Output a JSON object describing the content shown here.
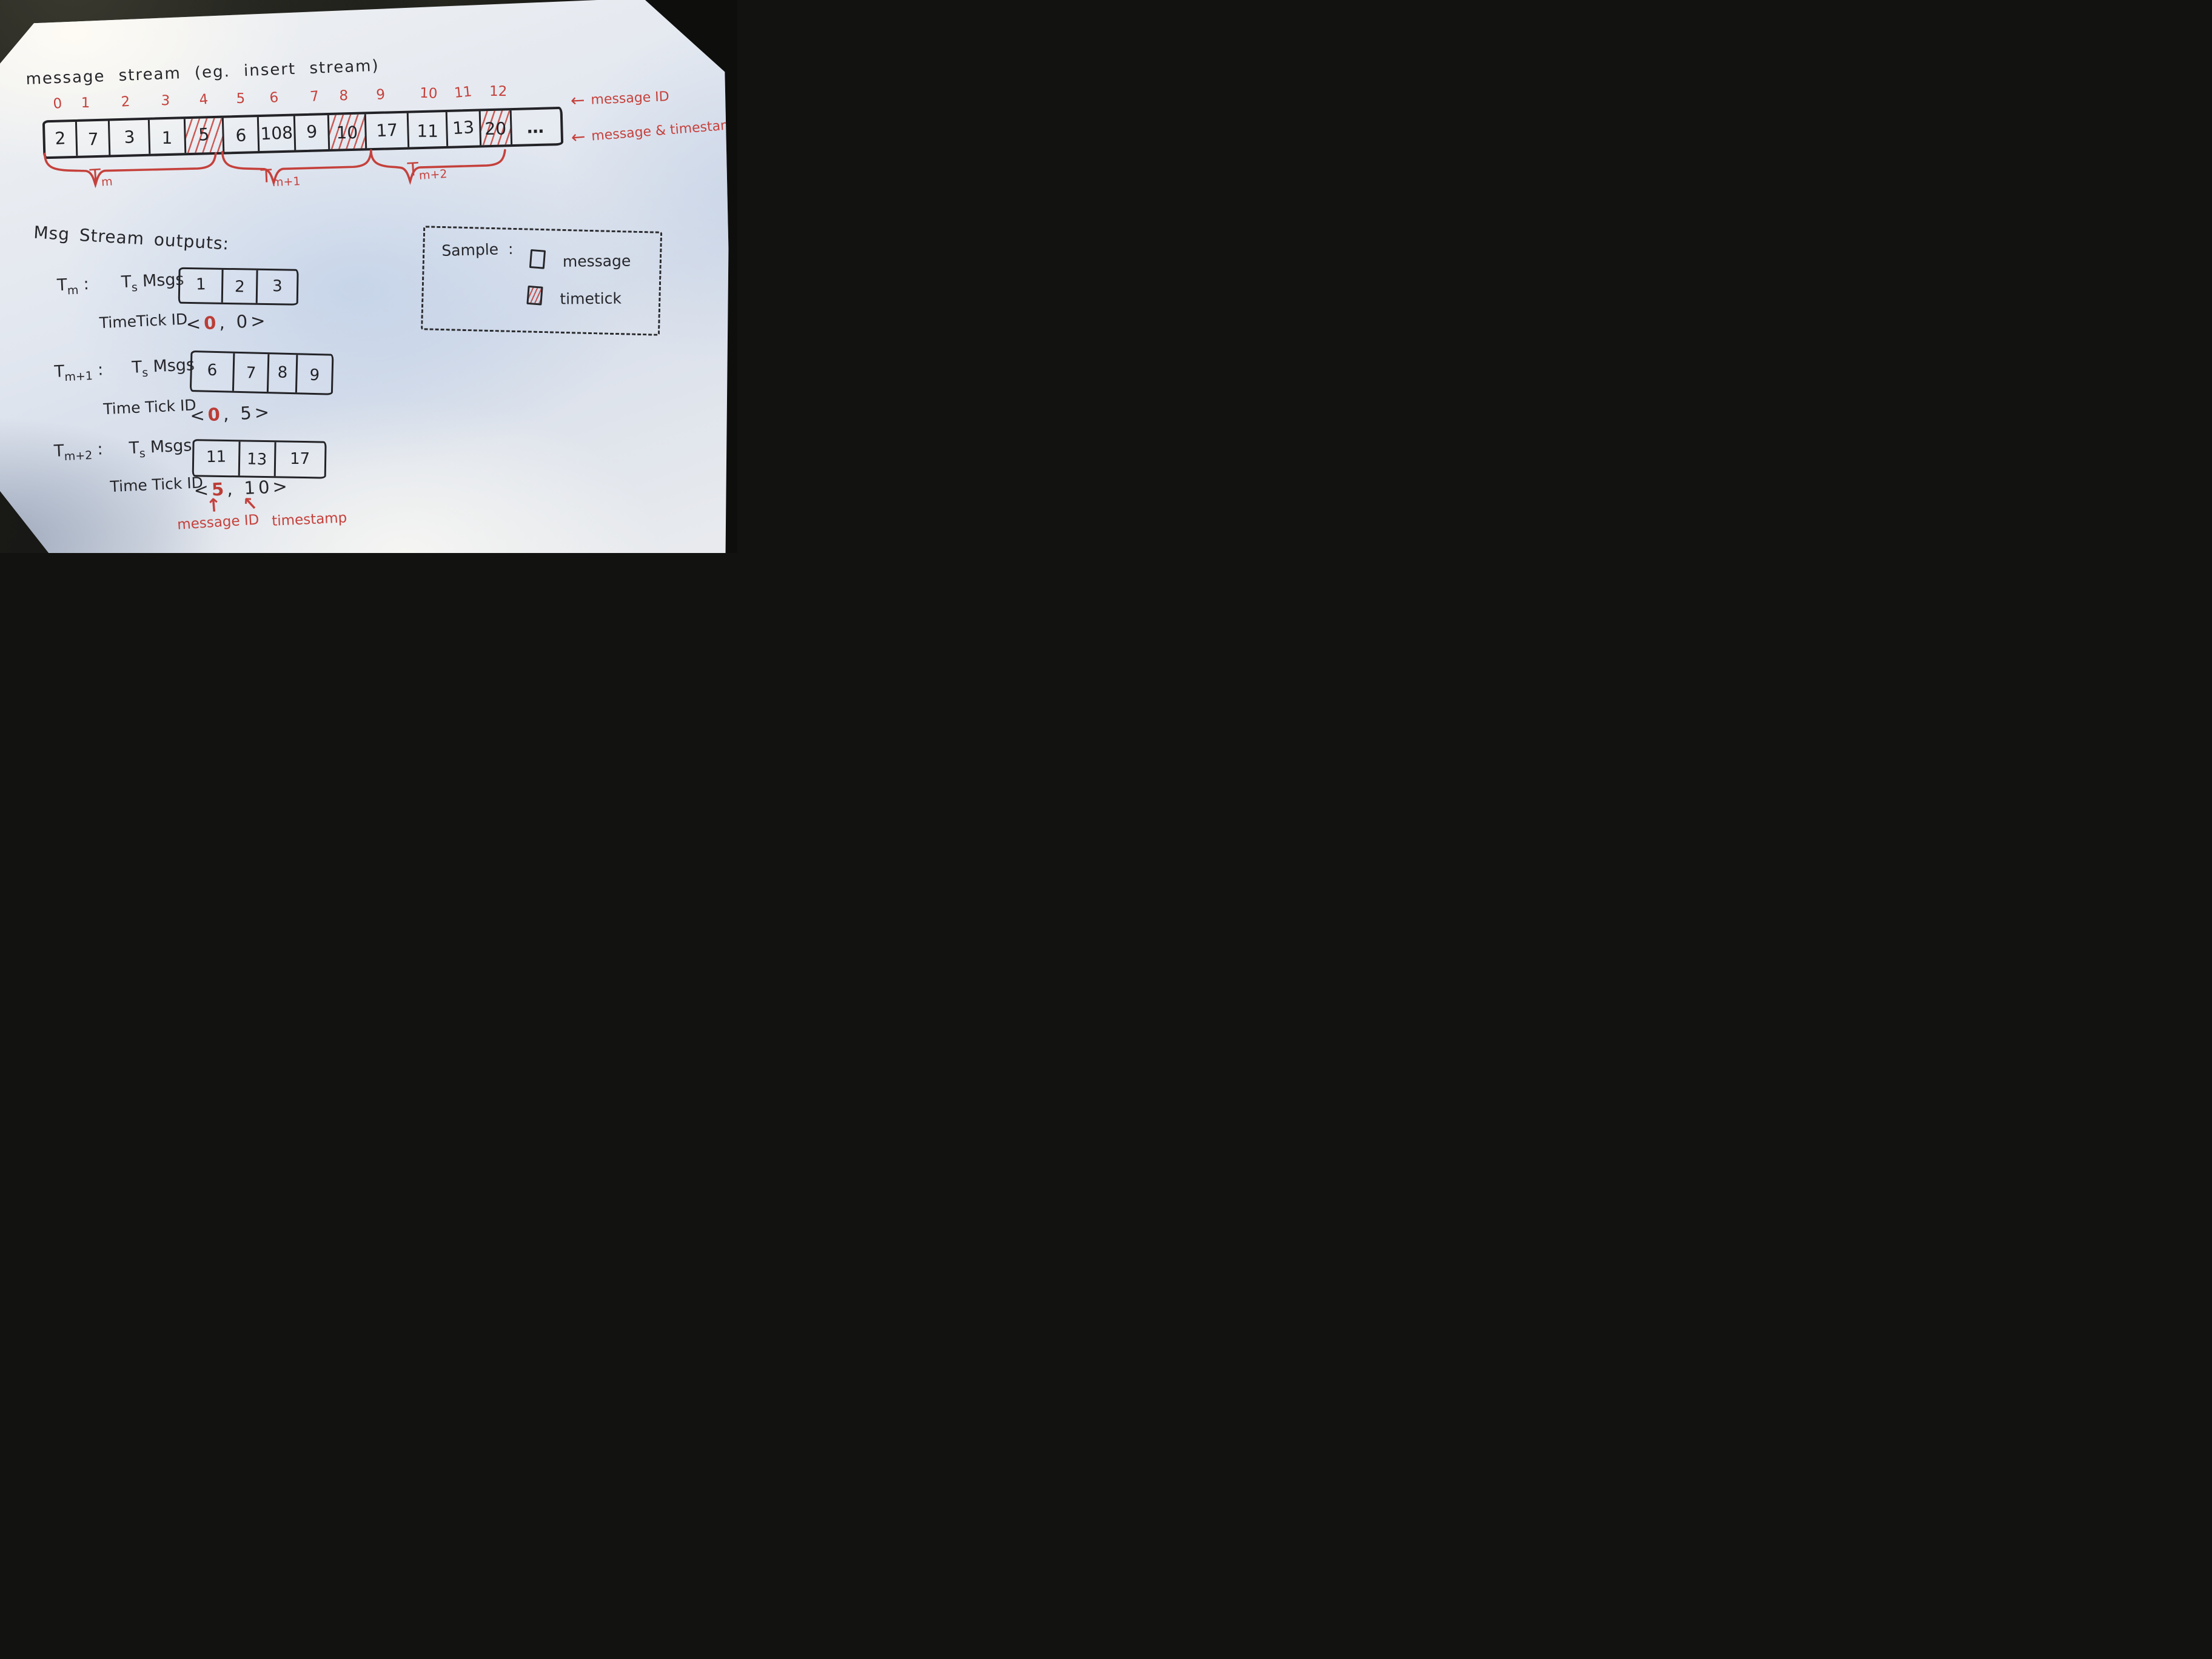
{
  "title": "message stream (eg. insert stream)",
  "stream": {
    "indices": [
      "0",
      "1",
      "2",
      "3",
      "4",
      "5",
      "6",
      "7",
      "8",
      "9",
      "10",
      "11",
      "12"
    ],
    "cells": [
      {
        "value": "2",
        "timetick": false
      },
      {
        "value": "7",
        "timetick": false
      },
      {
        "value": "3",
        "timetick": false
      },
      {
        "value": "1",
        "timetick": false
      },
      {
        "value": "5",
        "timetick": true
      },
      {
        "value": "6",
        "timetick": false
      },
      {
        "value": "108",
        "timetick": false
      },
      {
        "value": "9",
        "timetick": false
      },
      {
        "value": "10",
        "timetick": true
      },
      {
        "value": "17",
        "timetick": false
      },
      {
        "value": "11",
        "timetick": false
      },
      {
        "value": "13",
        "timetick": false
      },
      {
        "value": "20",
        "timetick": true
      },
      {
        "value": "…",
        "timetick": false
      }
    ],
    "annotation_top": {
      "arrow": "←",
      "label": "message ID"
    },
    "annotation_bottom": {
      "arrow": "←",
      "label": "message & timestamp"
    },
    "windows": [
      {
        "t": "T",
        "sub": "m"
      },
      {
        "t": "T",
        "sub": "m+1"
      },
      {
        "t": "T",
        "sub": "m+2"
      }
    ]
  },
  "outputs": {
    "heading": "Msg Stream outputs:",
    "rows": [
      {
        "window": {
          "t": "T",
          "sub": "m"
        },
        "colon": ":",
        "msgs_label": {
          "t": "T",
          "sub": "s",
          "rest": "Msgs"
        },
        "msgs": [
          "1",
          "2",
          "3"
        ],
        "tick_label": "TimeTick ID",
        "tick": {
          "open": "<",
          "first": "0",
          "comma": ",",
          "second": "0",
          "close": ">"
        }
      },
      {
        "window": {
          "t": "T",
          "sub": "m+1"
        },
        "colon": ":",
        "msgs_label": {
          "t": "T",
          "sub": "s",
          "rest": "Msgs"
        },
        "msgs": [
          "6",
          "7",
          "8",
          "9"
        ],
        "tick_label": "Time Tick ID",
        "tick": {
          "open": "<",
          "first": "0",
          "comma": ",",
          "second": "5",
          "close": ">"
        }
      },
      {
        "window": {
          "t": "T",
          "sub": "m+2"
        },
        "colon": ":",
        "msgs_label": {
          "t": "T",
          "sub": "s",
          "rest": "Msgs"
        },
        "msgs": [
          "11",
          "13",
          "17"
        ],
        "tick_label": "Time Tick ID",
        "tick": {
          "open": "<",
          "first": "5",
          "comma": ",",
          "second": "10",
          "close": ">"
        }
      }
    ],
    "footnote": {
      "up_arrow": "↑",
      "diag_arrow": "↖",
      "message_id_label": "message ID",
      "timestamp_label": "timestamp"
    }
  },
  "legend": {
    "title": "Sample :",
    "items": [
      {
        "icon": "message-cell-icon",
        "label": "message"
      },
      {
        "icon": "timetick-cell-icon",
        "label": "timetick"
      }
    ]
  },
  "colors": {
    "ink": "#26262a",
    "red": "#c5413c"
  }
}
